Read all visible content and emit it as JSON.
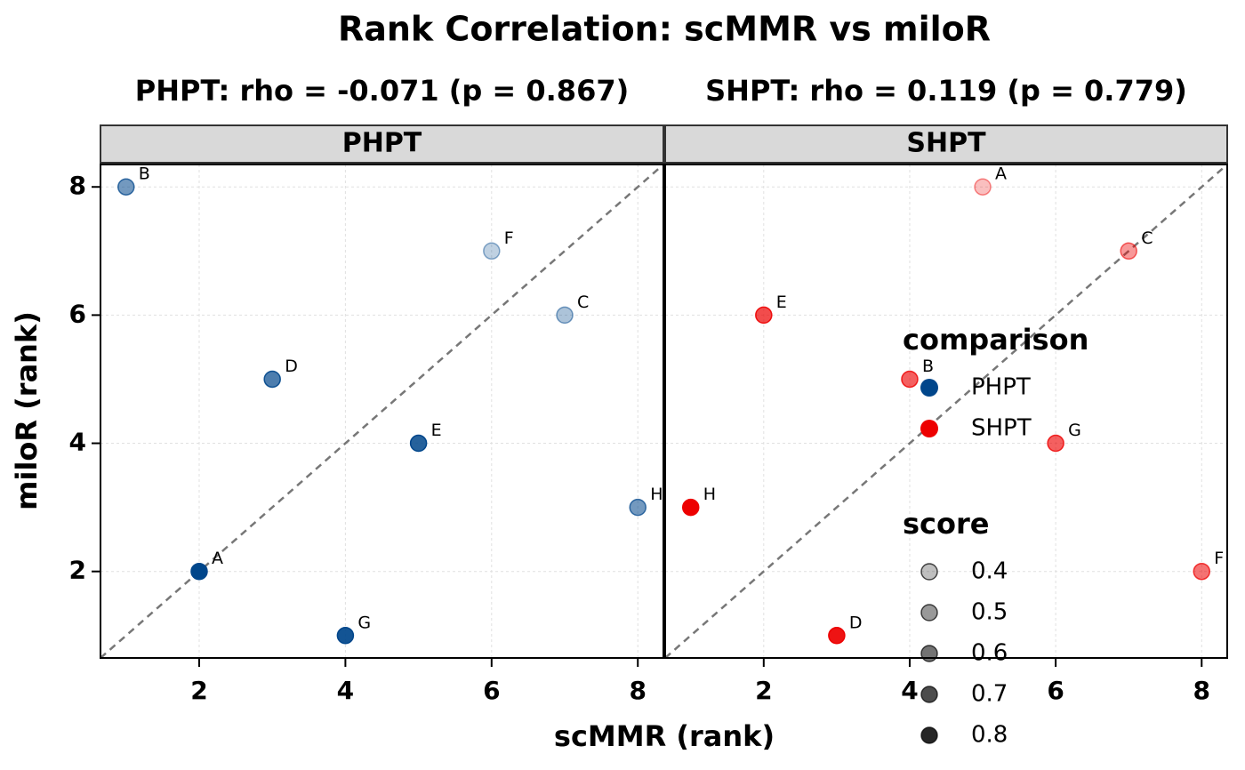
{
  "title": "Rank Correlation: scMMR vs miloR",
  "xlabel": "scMMR (rank)",
  "ylabel": "miloR (rank)",
  "legend": {
    "color_title": "comparison",
    "size_title": "score",
    "score_levels": [
      0.4,
      0.5,
      0.6,
      0.7,
      0.8
    ]
  },
  "chart_data": [
    {
      "type": "scatter",
      "name": "PHPT",
      "subtitle": "PHPT: rho = -0.071 (p = 0.867)",
      "color": "#00468B",
      "labels": [
        "A",
        "B",
        "C",
        "D",
        "E",
        "F",
        "G",
        "H"
      ],
      "x": [
        2,
        1,
        7,
        3,
        5,
        6,
        4,
        8
      ],
      "y": [
        2,
        8,
        6,
        5,
        4,
        7,
        1,
        3
      ],
      "score": [
        0.9,
        0.6,
        0.45,
        0.7,
        0.8,
        0.4,
        0.85,
        0.6
      ],
      "xlim": [
        0.65,
        8.35
      ],
      "ylim": [
        0.65,
        8.35
      ],
      "xticks": [
        2,
        4,
        6,
        8
      ],
      "yticks": [
        2,
        4,
        6,
        8
      ],
      "grid": true
    },
    {
      "type": "scatter",
      "name": "SHPT",
      "subtitle": "SHPT: rho = 0.119 (p = 0.779)",
      "color": "#ED0000",
      "labels": [
        "A",
        "B",
        "C",
        "D",
        "E",
        "F",
        "G",
        "H"
      ],
      "x": [
        5,
        4,
        7,
        3,
        2,
        8,
        6,
        1
      ],
      "y": [
        8,
        5,
        7,
        1,
        6,
        2,
        4,
        3
      ],
      "score": [
        0.4,
        0.65,
        0.5,
        0.85,
        0.7,
        0.6,
        0.65,
        0.9
      ],
      "xlim": [
        0.65,
        8.35
      ],
      "ylim": [
        0.65,
        8.35
      ],
      "xticks": [
        2,
        4,
        6,
        8
      ],
      "yticks": [
        2,
        4,
        6,
        8
      ],
      "grid": true
    }
  ]
}
